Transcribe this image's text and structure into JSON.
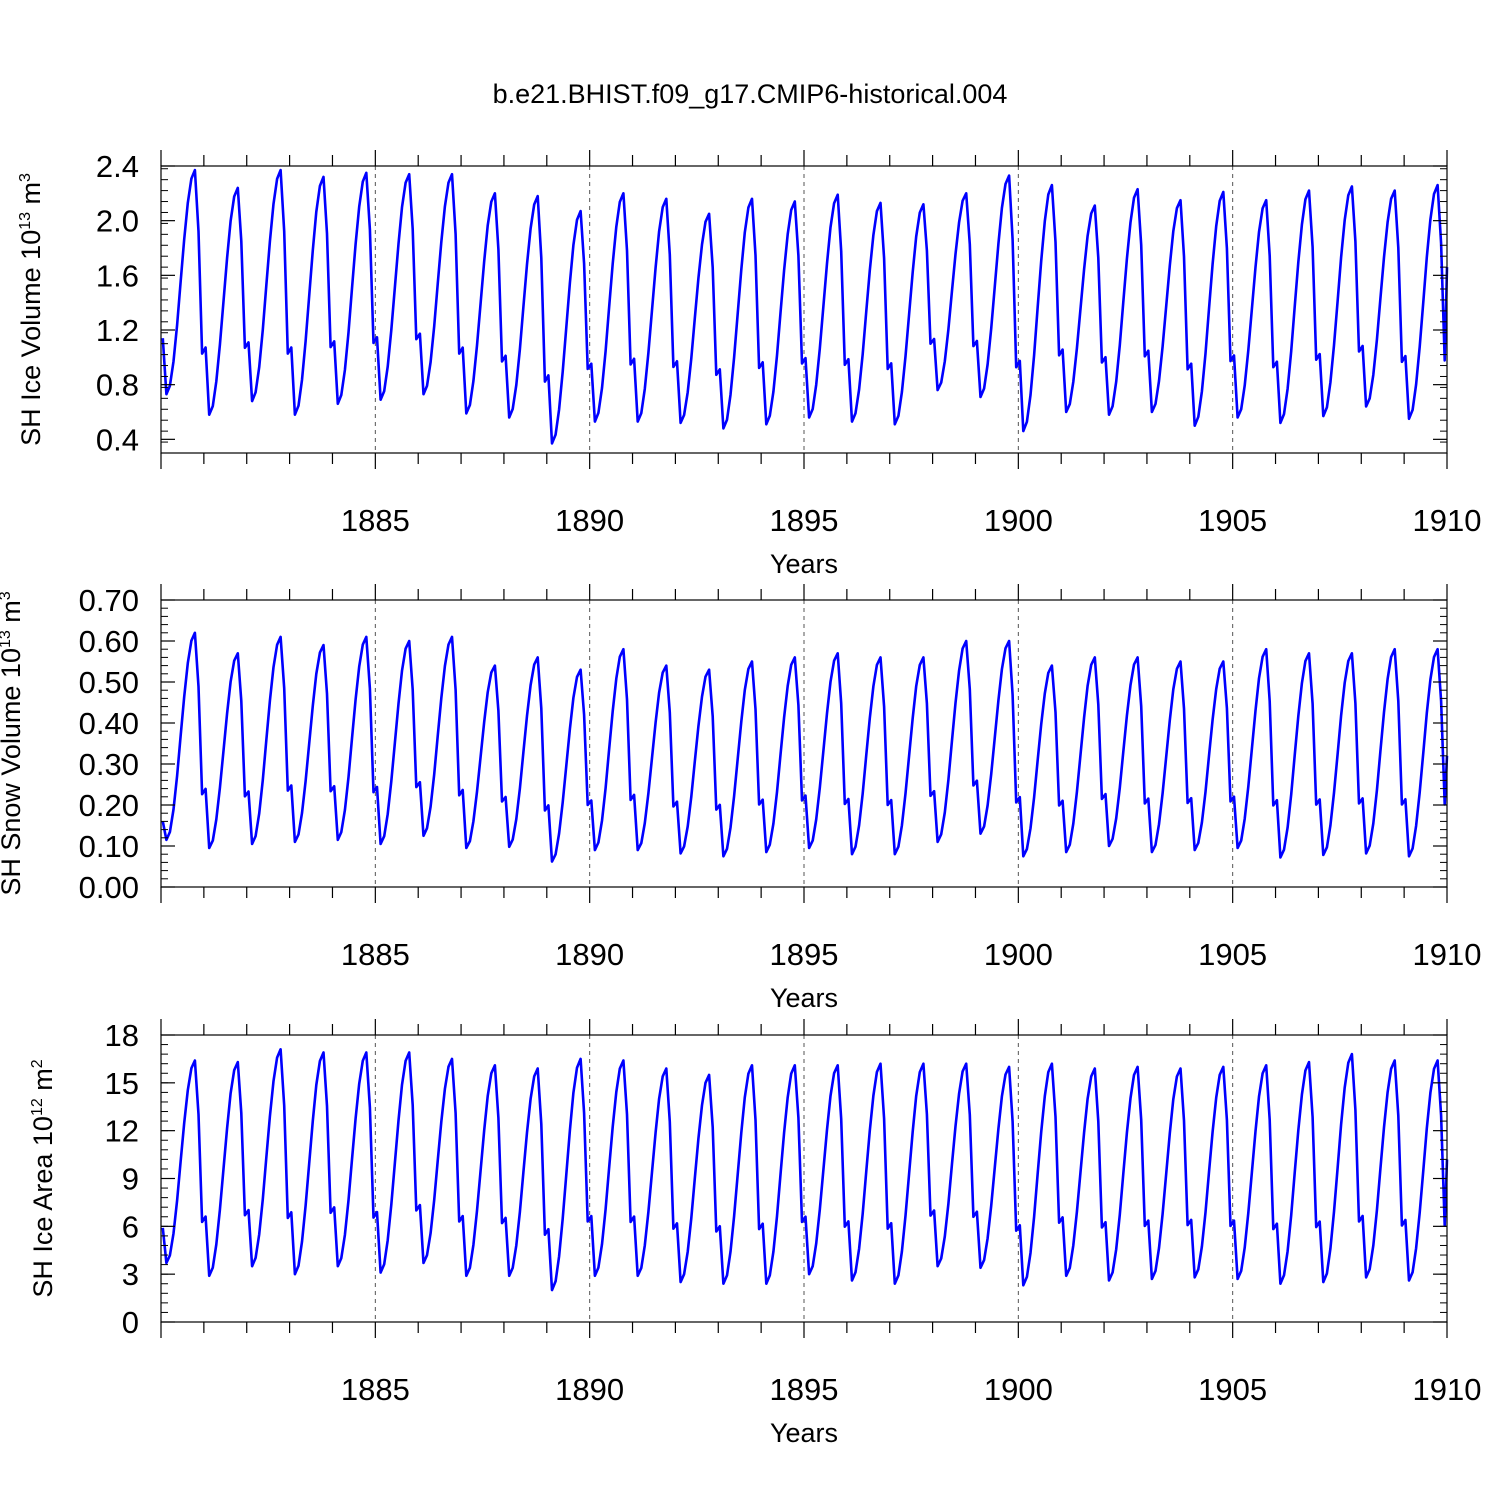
{
  "chart_data": [
    {
      "type": "line",
      "title": "b.e21.BHIST.f09_g17.CMIP6-historical.004",
      "ylabel": {
        "prefix": "SH Ice Volume 10",
        "exponent": "13",
        "unit": " m",
        "unit_exponent": "3"
      },
      "xlabel": "Years",
      "xlim": [
        1880.0,
        1910.0
      ],
      "ylim": [
        0.3,
        2.4
      ],
      "x_ticks": [
        1885,
        1890,
        1895,
        1900,
        1905,
        1910
      ],
      "x_tick_labels": [
        "1885",
        "1890",
        "1895",
        "1900",
        "1905",
        "1910"
      ],
      "y_ticks": [
        0.4,
        0.8,
        1.2,
        1.6,
        2.0,
        2.4
      ],
      "y_tick_labels": [
        "0.4",
        "0.8",
        "1.2",
        "1.6",
        "2.0",
        "2.4"
      ],
      "y_minor_step": 0.08,
      "series": [
        {
          "name": "SH Ice Volume",
          "start_year": 1880.0417,
          "step": 0.0833,
          "annual_min": [
            0.73,
            0.58,
            0.68,
            0.58,
            0.66,
            0.69,
            0.73,
            0.59,
            0.56,
            0.37,
            0.53,
            0.53,
            0.52,
            0.48,
            0.51,
            0.56,
            0.53,
            0.51,
            0.76,
            0.71,
            0.46,
            0.6,
            0.58,
            0.6,
            0.5,
            0.56,
            0.52,
            0.57,
            0.64,
            0.55
          ],
          "annual_max": [
            2.37,
            2.24,
            2.37,
            2.32,
            2.35,
            2.34,
            2.34,
            2.2,
            2.18,
            2.07,
            2.2,
            2.16,
            2.05,
            2.16,
            2.14,
            2.19,
            2.13,
            2.12,
            2.2,
            2.33,
            2.26,
            2.11,
            2.23,
            2.15,
            2.21,
            2.15,
            2.22,
            2.25,
            2.22,
            2.26
          ],
          "start_value": 1.14,
          "end_value": 1.66,
          "color": "#0000ff"
        }
      ]
    },
    {
      "type": "line",
      "ylabel": {
        "prefix": "SH Snow Volume 10",
        "exponent": "13",
        "unit": " m",
        "unit_exponent": "3"
      },
      "xlabel": "Years",
      "xlim": [
        1880.0,
        1910.0
      ],
      "ylim": [
        0.0,
        0.7
      ],
      "x_ticks": [
        1885,
        1890,
        1895,
        1900,
        1905,
        1910
      ],
      "x_tick_labels": [
        "1885",
        "1890",
        "1895",
        "1900",
        "1905",
        "1910"
      ],
      "y_ticks": [
        0.0,
        0.1,
        0.2,
        0.3,
        0.4,
        0.5,
        0.6,
        0.7
      ],
      "y_tick_labels": [
        "0.00",
        "0.10",
        "0.20",
        "0.30",
        "0.40",
        "0.50",
        "0.60",
        "0.70"
      ],
      "y_minor_step": 0.02,
      "series": [
        {
          "name": "SH Snow Volume",
          "start_year": 1880.0417,
          "step": 0.0833,
          "annual_min": [
            0.115,
            0.095,
            0.105,
            0.11,
            0.115,
            0.105,
            0.125,
            0.095,
            0.098,
            0.062,
            0.09,
            0.09,
            0.082,
            0.075,
            0.085,
            0.095,
            0.08,
            0.08,
            0.11,
            0.13,
            0.075,
            0.085,
            0.1,
            0.085,
            0.09,
            0.095,
            0.072,
            0.078,
            0.082,
            0.075
          ],
          "annual_max": [
            0.62,
            0.57,
            0.61,
            0.59,
            0.61,
            0.6,
            0.61,
            0.54,
            0.56,
            0.53,
            0.58,
            0.54,
            0.53,
            0.55,
            0.56,
            0.57,
            0.56,
            0.56,
            0.6,
            0.6,
            0.54,
            0.56,
            0.56,
            0.55,
            0.55,
            0.58,
            0.57,
            0.57,
            0.58,
            0.58
          ],
          "start_value": 0.16,
          "end_value": 0.32,
          "color": "#0000ff"
        }
      ]
    },
    {
      "type": "line",
      "ylabel": {
        "prefix": "SH Ice Area 10",
        "exponent": "12",
        "unit": " m",
        "unit_exponent": "2"
      },
      "xlabel": "Years",
      "xlim": [
        1880.0,
        1910.0
      ],
      "ylim": [
        0,
        18
      ],
      "x_ticks": [
        1885,
        1890,
        1895,
        1900,
        1905,
        1910
      ],
      "x_tick_labels": [
        "1885",
        "1890",
        "1895",
        "1900",
        "1905",
        "1910"
      ],
      "y_ticks": [
        0,
        3,
        6,
        9,
        12,
        15,
        18
      ],
      "y_tick_labels": [
        "0",
        "3",
        "6",
        "9",
        "12",
        "15",
        "18"
      ],
      "y_minor_step": 0.6,
      "series": [
        {
          "name": "SH Ice Area",
          "start_year": 1880.0417,
          "step": 0.0833,
          "annual_min": [
            3.7,
            2.9,
            3.5,
            3.0,
            3.5,
            3.1,
            3.7,
            2.9,
            2.9,
            2.0,
            2.9,
            2.9,
            2.5,
            2.4,
            2.4,
            3.0,
            2.6,
            2.4,
            3.5,
            3.4,
            2.3,
            2.9,
            2.6,
            2.7,
            2.8,
            2.7,
            2.4,
            2.5,
            2.8,
            2.6
          ],
          "annual_max": [
            16.4,
            16.3,
            17.1,
            16.9,
            16.9,
            16.9,
            16.5,
            16.1,
            15.9,
            16.5,
            16.4,
            15.9,
            15.5,
            16.1,
            16.1,
            16.1,
            16.2,
            16.2,
            16.2,
            16.0,
            16.2,
            15.9,
            16.0,
            15.9,
            16.0,
            16.1,
            16.3,
            16.8,
            16.4,
            16.4
          ],
          "start_value": 5.9,
          "end_value": 10.2,
          "color": "#0000ff"
        }
      ]
    }
  ]
}
